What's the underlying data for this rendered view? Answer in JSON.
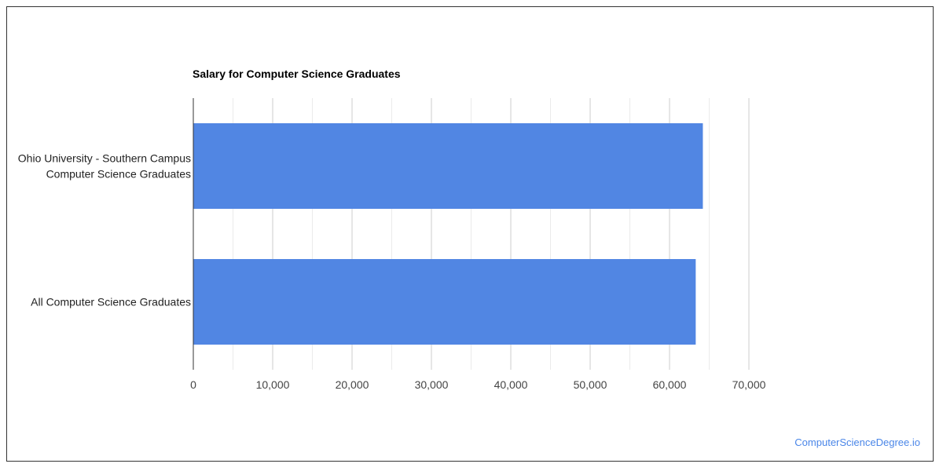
{
  "chart_data": {
    "type": "bar",
    "orientation": "horizontal",
    "title": "Salary for Computer Science Graduates",
    "categories": [
      [
        "Ohio University - Southern Campus",
        "Computer Science Graduates"
      ],
      [
        "All Computer Science Graduates"
      ]
    ],
    "values": [
      64200,
      63300
    ],
    "xlim": [
      0,
      70000
    ],
    "xticks": [
      0,
      10000,
      20000,
      30000,
      40000,
      50000,
      60000,
      70000
    ],
    "xtick_labels": [
      "0",
      "10,000",
      "20,000",
      "30,000",
      "40,000",
      "50,000",
      "60,000",
      "70,000"
    ],
    "bar_color": "#5186e3",
    "grid": true,
    "legend": "none"
  },
  "watermark": "ComputerScienceDegree.io",
  "colors": {
    "bar": "#5186e3",
    "watermark": "#4a86e8",
    "gridline": "#e0e0e0"
  }
}
